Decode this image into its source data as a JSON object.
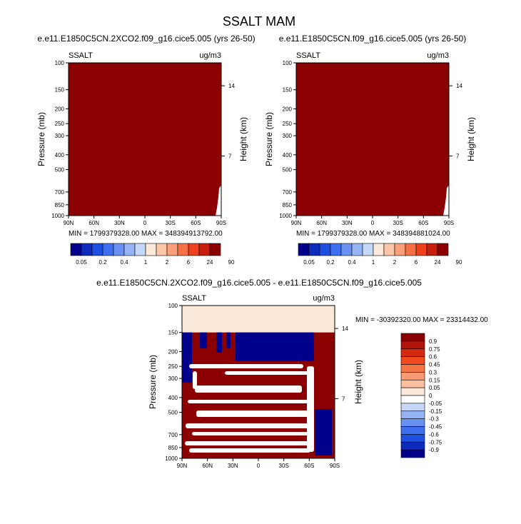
{
  "page": {
    "title": "SSALT MAM"
  },
  "colors": {
    "dark_red": "#8b0000",
    "cream": "#fde9d9",
    "dark_blue": "#00008b",
    "white": "#ffffff"
  },
  "chart_data": [
    {
      "type": "heatmap",
      "title": "e.e11.E1850C5CN.2XCO2.f09_g16.cice5.005 (yrs 26-50)",
      "variable": "SSALT",
      "units": "ug/m3",
      "xlabel": "",
      "ylabel": "Pressure (mb)",
      "y2label": "Height (km)",
      "x_ticks": [
        "90N",
        "60N",
        "30N",
        "0",
        "30S",
        "60S",
        "90S"
      ],
      "y_ticks": [
        "100",
        "150",
        "200",
        "250",
        "300",
        "400",
        "500",
        "700",
        "850",
        "1000"
      ],
      "y2_ticks": [
        "14",
        "7"
      ],
      "y_scale": "log",
      "stats": "MIN = 1799379328.00  MAX = 348394913792.00"
    },
    {
      "type": "heatmap",
      "title": "e.e11.E1850C5CN.f09_g16.cice5.005 (yrs 26-50)",
      "variable": "SSALT",
      "units": "ug/m3",
      "xlabel": "",
      "ylabel": "Pressure (mb)",
      "y2label": "Height (km)",
      "x_ticks": [
        "90N",
        "60N",
        "30N",
        "0",
        "30S",
        "60S",
        "90S"
      ],
      "y_ticks": [
        "100",
        "150",
        "200",
        "250",
        "300",
        "400",
        "500",
        "700",
        "850",
        "1000"
      ],
      "y2_ticks": [
        "14",
        "7"
      ],
      "y_scale": "log",
      "stats": "MIN = 1799379328.00  MAX = 348394881024.00"
    },
    {
      "type": "heatmap",
      "title": "e.e11.E1850C5CN.2XCO2.f09_g16.cice5.005 - e.e11.E1850C5CN.f09_g16.cice5.005",
      "variable": "SSALT",
      "units": "ug/m3",
      "xlabel": "",
      "ylabel": "Pressure (mb)",
      "y2label": "Height (km)",
      "x_ticks": [
        "90N",
        "60N",
        "30N",
        "0",
        "30S",
        "60S",
        "90S"
      ],
      "y_ticks": [
        "100",
        "150",
        "200",
        "250",
        "300",
        "400",
        "500",
        "700",
        "850",
        "1000"
      ],
      "y2_ticks": [
        "14",
        "7"
      ],
      "y_scale": "log",
      "stats": "MIN = -30392320.00  MAX = 23314432.00"
    }
  ],
  "colorbar_top": {
    "labels": [
      "0.05",
      "0.2",
      "0.4",
      "1",
      "2",
      "6",
      "24",
      "90"
    ],
    "colors": [
      "#00008b",
      "#0d2bbd",
      "#1f4fe0",
      "#3d6ff0",
      "#6891f2",
      "#96b3f5",
      "#c6d8f8",
      "#fde9d9",
      "#fcc5a8",
      "#f9a07b",
      "#f66f45",
      "#ef3f1c",
      "#c81e0e",
      "#8b0000"
    ]
  },
  "colorbar_diff": {
    "labels": [
      "0.9",
      "0.75",
      "0.6",
      "0.45",
      "0.3",
      "0.15",
      "0.05",
      "0",
      "-0.05",
      "-0.15",
      "-0.3",
      "-0.45",
      "-0.6",
      "-0.75",
      "-0.9"
    ],
    "colors": [
      "#8b0000",
      "#b3130a",
      "#d42a10",
      "#ef4a1e",
      "#f67545",
      "#f99a72",
      "#fcc0a0",
      "#fde9d9",
      "#ffffff",
      "#c6d8f8",
      "#96b3f5",
      "#6891f2",
      "#3d6ff0",
      "#1f4fe0",
      "#0d2bbd",
      "#00008b"
    ]
  }
}
